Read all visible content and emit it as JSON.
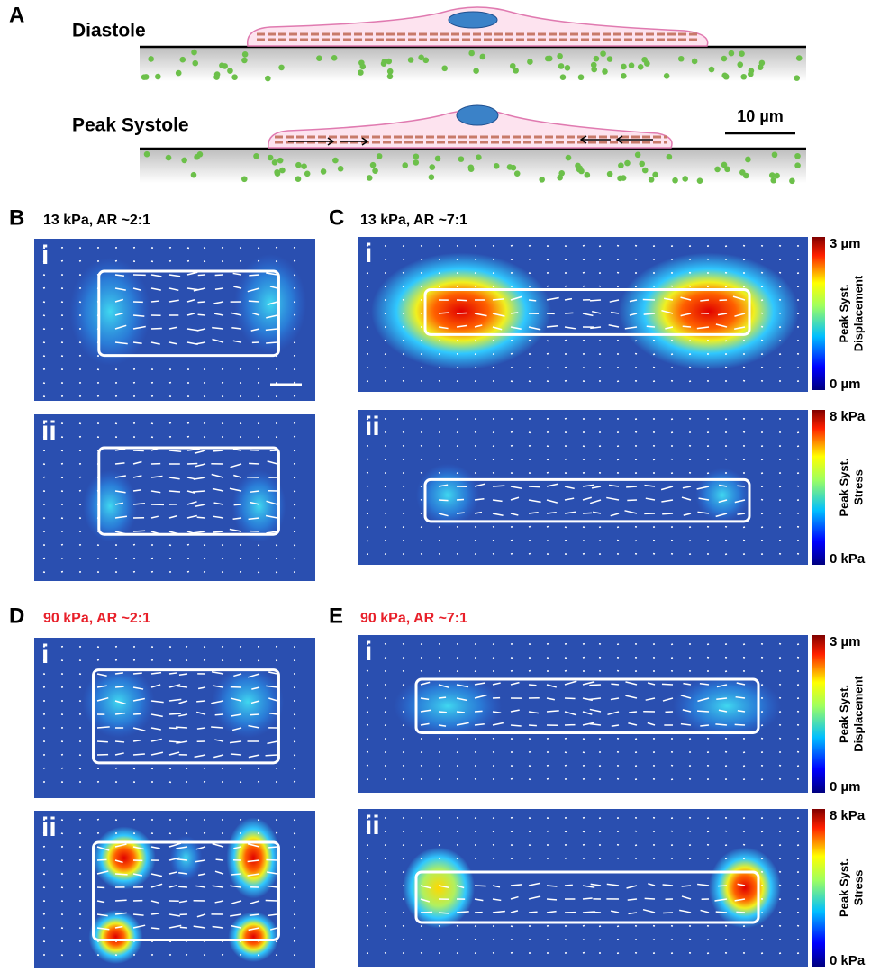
{
  "panel_a": {
    "label": "A",
    "diastole": "Diastole",
    "peak_systole": "Peak Systole",
    "scale_bar": "10 µm"
  },
  "panels": [
    {
      "label": "B",
      "title": "13 kPa, AR ~2:1",
      "title_color": "#000000",
      "subpanels": [
        "i",
        "ii"
      ]
    },
    {
      "label": "C",
      "title": "13 kPa, AR ~7:1",
      "title_color": "#000000",
      "subpanels": [
        "i",
        "ii"
      ],
      "colorbars": [
        {
          "max": "3 µm",
          "label": [
            "Peak Syst.",
            "Displacement"
          ],
          "min": "0 µm"
        },
        {
          "max": "8 kPa",
          "label": [
            "Peak Syst.",
            "Stress"
          ],
          "min": "0 kPa"
        }
      ]
    },
    {
      "label": "D",
      "title": "90 kPa, AR ~2:1",
      "title_color": "#e8202a",
      "subpanels": [
        "i",
        "ii"
      ]
    },
    {
      "label": "E",
      "title": "90 kPa, AR ~7:1",
      "title_color": "#e8202a",
      "subpanels": [
        "i",
        "ii"
      ],
      "colorbars": [
        {
          "max": "3 µm",
          "label": [
            "Peak Syst.",
            "Displacement"
          ],
          "min": "0 µm"
        },
        {
          "max": "8 kPa",
          "label": [
            "Peak Syst.",
            "Stress"
          ],
          "min": "0 kPa"
        }
      ]
    }
  ]
}
